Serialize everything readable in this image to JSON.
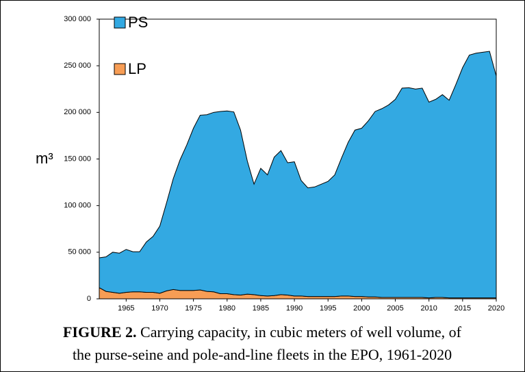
{
  "chart_data": {
    "type": "stacked_area",
    "ylabel": "m³",
    "legend": "upper left",
    "x": [
      1961,
      1962,
      1963,
      1964,
      1965,
      1966,
      1967,
      1968,
      1969,
      1970,
      1971,
      1972,
      1973,
      1974,
      1975,
      1976,
      1977,
      1978,
      1979,
      1980,
      1981,
      1982,
      1983,
      1984,
      1985,
      1986,
      1987,
      1988,
      1989,
      1990,
      1991,
      1992,
      1993,
      1994,
      1995,
      1996,
      1997,
      1998,
      1999,
      2000,
      2001,
      2002,
      2003,
      2004,
      2005,
      2006,
      2007,
      2008,
      2009,
      2010,
      2011,
      2012,
      2013,
      2014,
      2015,
      2016,
      2017,
      2018,
      2019,
      2020
    ],
    "series": [
      {
        "name": "PS",
        "color": "#33a9e2",
        "values": [
          32000,
          37000,
          43000,
          43000,
          46000,
          43000,
          43000,
          54000,
          60000,
          72000,
          94500,
          119000,
          140000,
          156000,
          174000,
          187500,
          189500,
          192500,
          195500,
          196000,
          196000,
          177000,
          143000,
          118500,
          136500,
          130000,
          148500,
          154500,
          142000,
          144000,
          124000,
          116500,
          117500,
          120500,
          123500,
          130500,
          148000,
          165000,
          178500,
          180500,
          189000,
          199000,
          202500,
          206500,
          212500,
          224500,
          225000,
          223500,
          224500,
          210000,
          212500,
          217500,
          212000,
          229000,
          247000,
          260500,
          262500,
          263500,
          264500,
          238000
        ]
      },
      {
        "name": "LP",
        "color": "#f79d55",
        "values": [
          12000,
          8000,
          7000,
          6000,
          7000,
          7500,
          7500,
          7000,
          7000,
          6000,
          8500,
          10000,
          9000,
          9000,
          9000,
          9500,
          8000,
          7500,
          5500,
          5500,
          4500,
          4000,
          5000,
          4500,
          3500,
          3000,
          3500,
          4500,
          4000,
          3000,
          3000,
          2500,
          2500,
          2500,
          2500,
          2500,
          3000,
          3000,
          2500,
          2500,
          2000,
          2000,
          1500,
          1500,
          1500,
          1500,
          1500,
          1500,
          1500,
          1000,
          1500,
          1500,
          1000,
          1000,
          1000,
          1000,
          1000,
          1000,
          1000,
          1000
        ]
      }
    ],
    "xlim": [
      1961,
      2020
    ],
    "xticks": [
      1965,
      1970,
      1975,
      1980,
      1985,
      1990,
      1995,
      2000,
      2005,
      2010,
      2015,
      2020
    ],
    "ylim": [
      0,
      300000
    ],
    "yticks": [
      0,
      {
        "value": 50000,
        "label": "50 000"
      },
      {
        "value": 100000,
        "label": "100 000"
      },
      {
        "value": 150000,
        "label": "150 000"
      },
      {
        "value": 200000,
        "label": "200 000"
      },
      {
        "value": 250000,
        "label": "250 000"
      },
      {
        "value": 300000,
        "label": "300 000"
      }
    ]
  },
  "caption": {
    "label": "FIGURE 2.",
    "text_line1": "Carrying capacity, in cubic meters of well volume, of",
    "text_line2": "the purse-seine and pole-and-line fleets in the EPO, 1961-2020"
  }
}
